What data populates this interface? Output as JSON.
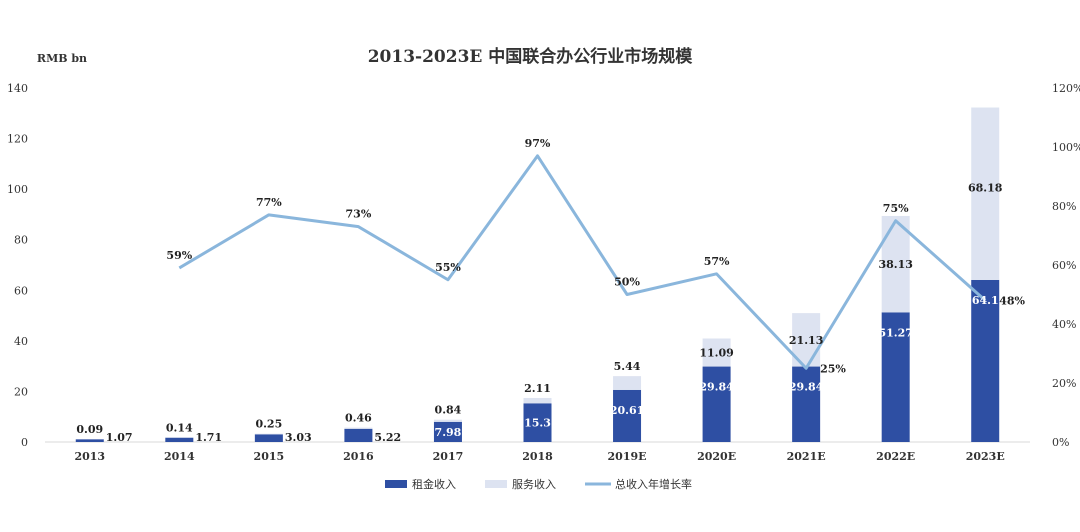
{
  "chart_data": {
    "type": "bar",
    "title": "2013-2023E 中国联合办公行业市场规模",
    "unit_label": "RMB bn",
    "categories": [
      "2013",
      "2014",
      "2015",
      "2016",
      "2017",
      "2018",
      "2019E",
      "2020E",
      "2021E",
      "2022E",
      "2023E"
    ],
    "series": [
      {
        "name": "租金收入",
        "kind": "bar",
        "color": "#2e4fa3",
        "values": [
          1.07,
          1.71,
          3.03,
          5.22,
          7.98,
          15.3,
          20.61,
          29.84,
          29.84,
          51.27,
          64.1
        ]
      },
      {
        "name": "服务收入",
        "kind": "bar",
        "color": "#dde3f1",
        "values": [
          0.09,
          0.14,
          0.25,
          0.46,
          0.84,
          2.11,
          5.44,
          11.09,
          21.13,
          38.13,
          68.18
        ]
      },
      {
        "name": "总收入年增长率",
        "kind": "line",
        "color": "#8ab6dc",
        "axis": "right",
        "values": [
          null,
          59,
          77,
          73,
          55,
          97,
          50,
          57,
          25,
          75,
          48
        ]
      }
    ],
    "rent_labels": [
      "1.07",
      "1.71",
      "3.03",
      "5.22",
      "7.98",
      "15.3",
      "20.61",
      "29.84",
      "29.84",
      "51.27",
      "64.1"
    ],
    "service_labels": [
      "0.09",
      "0.14",
      "0.25",
      "0.46",
      "0.84",
      "2.11",
      "5.44",
      "11.09",
      "21.13",
      "38.13",
      "68.18"
    ],
    "growth_labels": [
      "",
      "59%",
      "77%",
      "73%",
      "55%",
      "97%",
      "50%",
      "57%",
      "25%",
      "75%",
      "48%"
    ],
    "y_left": {
      "min": 0,
      "max": 140,
      "ticks": [
        "0",
        "20",
        "40",
        "60",
        "80",
        "100",
        "120",
        "140"
      ]
    },
    "y_right": {
      "min": 0,
      "max": 120,
      "ticks": [
        "0%",
        "20%",
        "40%",
        "60%",
        "80%",
        "100%",
        "120%"
      ]
    },
    "grid": false,
    "legend_position": "bottom",
    "highlight_color": "#c0392b"
  }
}
